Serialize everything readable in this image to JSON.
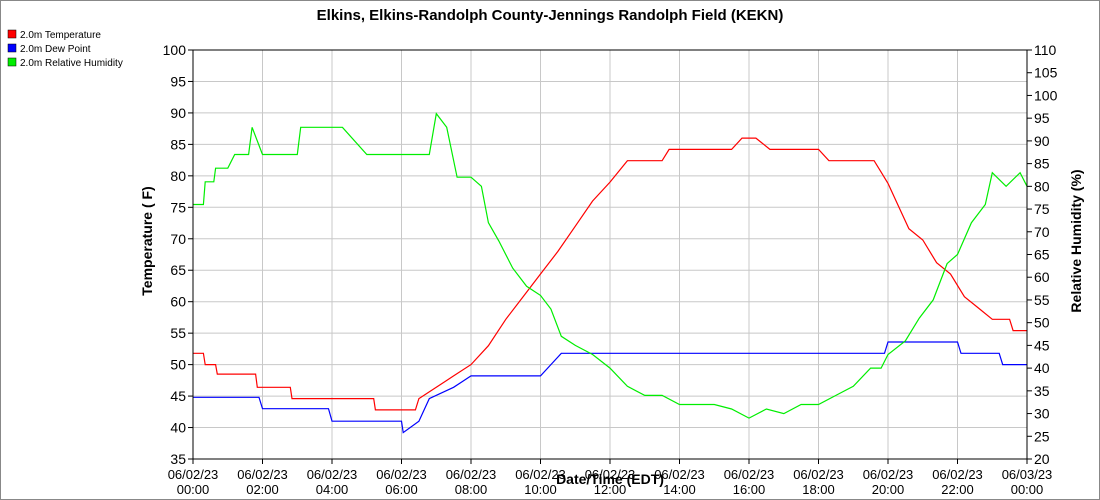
{
  "chart_data": {
    "type": "line",
    "title": "Elkins, Elkins-Randolph County-Jennings Randolph Field (KEKN)",
    "xlabel": "Date/Time (EDT)",
    "ylabel_left": "Temperature ( F)",
    "ylabel_right": "Relative Humidity (%)",
    "ylim_left": [
      35,
      100
    ],
    "ylim_right": [
      20,
      110
    ],
    "xlim_hours": [
      0,
      24
    ],
    "x_ticks": [
      {
        "date": "06/02/23",
        "time": "00:00",
        "hour": 0
      },
      {
        "date": "06/02/23",
        "time": "02:00",
        "hour": 2
      },
      {
        "date": "06/02/23",
        "time": "04:00",
        "hour": 4
      },
      {
        "date": "06/02/23",
        "time": "06:00",
        "hour": 6
      },
      {
        "date": "06/02/23",
        "time": "08:00",
        "hour": 8
      },
      {
        "date": "06/02/23",
        "time": "10:00",
        "hour": 10
      },
      {
        "date": "06/02/23",
        "time": "12:00",
        "hour": 12
      },
      {
        "date": "06/02/23",
        "time": "14:00",
        "hour": 14
      },
      {
        "date": "06/02/23",
        "time": "16:00",
        "hour": 16
      },
      {
        "date": "06/02/23",
        "time": "18:00",
        "hour": 18
      },
      {
        "date": "06/02/23",
        "time": "20:00",
        "hour": 20
      },
      {
        "date": "06/02/23",
        "time": "22:00",
        "hour": 22
      },
      {
        "date": "06/03/23",
        "time": "00:00",
        "hour": 24
      }
    ],
    "y_ticks_left": [
      35,
      40,
      45,
      50,
      55,
      60,
      65,
      70,
      75,
      80,
      85,
      90,
      95,
      100
    ],
    "y_ticks_right": [
      20,
      25,
      30,
      35,
      40,
      45,
      50,
      55,
      60,
      65,
      70,
      75,
      80,
      85,
      90,
      95,
      100,
      105,
      110
    ],
    "grid": true,
    "legend_position": "top-left",
    "series": [
      {
        "name": "2.0m Temperature",
        "color": "#ff0000",
        "axis": "left",
        "points": [
          [
            0,
            51.8
          ],
          [
            0.3,
            51.8
          ],
          [
            0.35,
            50.0
          ],
          [
            0.65,
            50.0
          ],
          [
            0.7,
            48.5
          ],
          [
            1.8,
            48.5
          ],
          [
            1.85,
            46.4
          ],
          [
            2.8,
            46.4
          ],
          [
            2.85,
            44.6
          ],
          [
            5.2,
            44.6
          ],
          [
            5.25,
            42.8
          ],
          [
            6.4,
            42.8
          ],
          [
            6.5,
            44.6
          ],
          [
            7.0,
            46.4
          ],
          [
            7.5,
            48.2
          ],
          [
            8.0,
            50.0
          ],
          [
            8.5,
            53.0
          ],
          [
            9.0,
            57.2
          ],
          [
            9.5,
            60.8
          ],
          [
            10.0,
            64.4
          ],
          [
            10.5,
            68.0
          ],
          [
            11.0,
            72.0
          ],
          [
            11.5,
            76.0
          ],
          [
            12.0,
            79.0
          ],
          [
            12.5,
            82.4
          ],
          [
            13.5,
            82.4
          ],
          [
            13.7,
            84.2
          ],
          [
            15.0,
            84.2
          ],
          [
            15.5,
            84.2
          ],
          [
            15.8,
            86.0
          ],
          [
            16.2,
            86.0
          ],
          [
            16.6,
            84.2
          ],
          [
            18.0,
            84.2
          ],
          [
            18.3,
            82.4
          ],
          [
            19.6,
            82.4
          ],
          [
            19.8,
            80.6
          ],
          [
            20.0,
            78.8
          ],
          [
            20.3,
            75.2
          ],
          [
            20.6,
            71.6
          ],
          [
            21.0,
            69.8
          ],
          [
            21.4,
            66.2
          ],
          [
            21.8,
            64.4
          ],
          [
            22.2,
            60.8
          ],
          [
            22.6,
            59.0
          ],
          [
            23.0,
            57.2
          ],
          [
            23.5,
            57.2
          ],
          [
            23.6,
            55.4
          ],
          [
            24.0,
            55.4
          ]
        ]
      },
      {
        "name": "2.0m Dew Point",
        "color": "#0000ff",
        "axis": "left",
        "points": [
          [
            0,
            44.8
          ],
          [
            1.9,
            44.8
          ],
          [
            2.0,
            43.0
          ],
          [
            3.9,
            43.0
          ],
          [
            4.0,
            41.0
          ],
          [
            6.0,
            41.0
          ],
          [
            6.05,
            39.2
          ],
          [
            6.5,
            41.0
          ],
          [
            6.8,
            44.6
          ],
          [
            7.5,
            46.4
          ],
          [
            8.0,
            48.2
          ],
          [
            9.0,
            48.2
          ],
          [
            9.5,
            48.2
          ],
          [
            10.0,
            48.2
          ],
          [
            10.3,
            50.0
          ],
          [
            10.6,
            51.8
          ],
          [
            12.0,
            51.8
          ],
          [
            12.5,
            51.8
          ],
          [
            13.5,
            51.8
          ],
          [
            14.0,
            51.8
          ],
          [
            15.0,
            51.8
          ],
          [
            16.0,
            51.8
          ],
          [
            17.0,
            51.8
          ],
          [
            18.0,
            51.8
          ],
          [
            19.0,
            51.8
          ],
          [
            19.9,
            51.8
          ],
          [
            20.0,
            53.6
          ],
          [
            22.0,
            53.6
          ],
          [
            22.1,
            51.8
          ],
          [
            23.2,
            51.8
          ],
          [
            23.3,
            50.0
          ],
          [
            24.0,
            50.0
          ]
        ]
      },
      {
        "name": "2.0m Relative Humidity",
        "color": "#00ee00",
        "axis": "right",
        "points": [
          [
            0,
            76
          ],
          [
            0.3,
            76
          ],
          [
            0.35,
            81
          ],
          [
            0.6,
            81
          ],
          [
            0.65,
            84
          ],
          [
            1.0,
            84
          ],
          [
            1.2,
            87
          ],
          [
            1.6,
            87
          ],
          [
            1.7,
            93
          ],
          [
            2.0,
            87
          ],
          [
            3.0,
            87
          ],
          [
            3.1,
            93
          ],
          [
            4.0,
            93
          ],
          [
            4.3,
            93
          ],
          [
            5.0,
            87
          ],
          [
            6.0,
            87
          ],
          [
            6.8,
            87
          ],
          [
            7.0,
            96
          ],
          [
            7.3,
            93
          ],
          [
            7.6,
            82
          ],
          [
            8.0,
            82
          ],
          [
            8.3,
            80
          ],
          [
            8.5,
            72
          ],
          [
            8.8,
            68
          ],
          [
            9.2,
            62
          ],
          [
            9.6,
            58
          ],
          [
            10.0,
            56
          ],
          [
            10.3,
            53
          ],
          [
            10.6,
            47
          ],
          [
            11.0,
            45
          ],
          [
            11.5,
            43
          ],
          [
            12.0,
            40
          ],
          [
            12.5,
            36
          ],
          [
            13.0,
            34
          ],
          [
            13.5,
            34
          ],
          [
            14.0,
            32
          ],
          [
            15.0,
            32
          ],
          [
            15.5,
            31
          ],
          [
            16.0,
            29
          ],
          [
            16.5,
            31
          ],
          [
            17.0,
            30
          ],
          [
            17.5,
            32
          ],
          [
            18.0,
            32
          ],
          [
            18.5,
            34
          ],
          [
            19.0,
            36
          ],
          [
            19.5,
            40
          ],
          [
            19.8,
            40
          ],
          [
            20.0,
            43
          ],
          [
            20.5,
            46
          ],
          [
            20.9,
            51
          ],
          [
            21.3,
            55
          ],
          [
            21.7,
            63
          ],
          [
            22.0,
            65
          ],
          [
            22.4,
            72
          ],
          [
            22.8,
            76
          ],
          [
            23.0,
            83
          ],
          [
            23.4,
            80
          ],
          [
            23.8,
            83
          ],
          [
            24.0,
            80
          ]
        ]
      }
    ]
  }
}
